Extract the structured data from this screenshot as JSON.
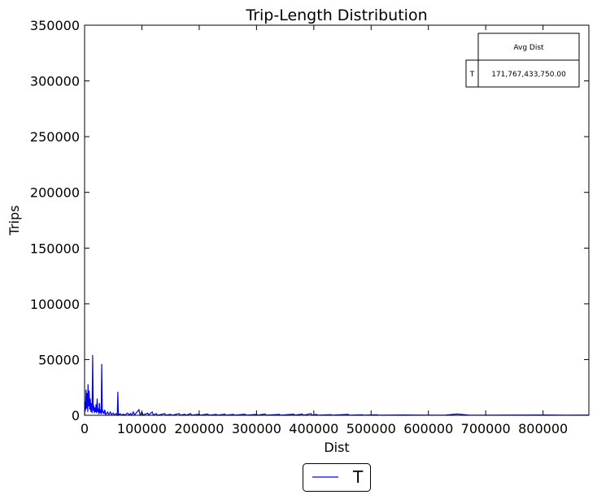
{
  "chart_data": {
    "type": "line",
    "title": "Trip-Length Distribution",
    "xlabel": "Dist",
    "ylabel": "Trips",
    "xlim": [
      0,
      880000
    ],
    "ylim": [
      0,
      350000
    ],
    "xticks": [
      0,
      100000,
      200000,
      300000,
      400000,
      500000,
      600000,
      700000,
      800000
    ],
    "yticks": [
      0,
      50000,
      100000,
      150000,
      200000,
      250000,
      300000,
      350000
    ],
    "grid": false,
    "legend_position": "bottom-center",
    "series": [
      {
        "name": "T",
        "color": "#0000ff",
        "points": [
          [
            0,
            0
          ],
          [
            1000,
            12000
          ],
          [
            1500,
            4000
          ],
          [
            2500,
            23000
          ],
          [
            3500,
            6000
          ],
          [
            4500,
            20000
          ],
          [
            5500,
            3000
          ],
          [
            6000,
            28000
          ],
          [
            7000,
            8000
          ],
          [
            8000,
            22000
          ],
          [
            9000,
            5000
          ],
          [
            10000,
            15000
          ],
          [
            11000,
            3000
          ],
          [
            12000,
            11000
          ],
          [
            13000,
            2000
          ],
          [
            14000,
            54000
          ],
          [
            15000,
            4000
          ],
          [
            16000,
            9000
          ],
          [
            17000,
            2000
          ],
          [
            18000,
            7000
          ],
          [
            19000,
            3000
          ],
          [
            20000,
            10000
          ],
          [
            21000,
            2000
          ],
          [
            22000,
            15000
          ],
          [
            23000,
            3000
          ],
          [
            24000,
            6000
          ],
          [
            25000,
            1000
          ],
          [
            26000,
            11000
          ],
          [
            27000,
            2000
          ],
          [
            28000,
            5000
          ],
          [
            29000,
            1000
          ],
          [
            30000,
            46000
          ],
          [
            31000,
            2000
          ],
          [
            32000,
            4000
          ],
          [
            34000,
            1000
          ],
          [
            35000,
            5000
          ],
          [
            37000,
            500
          ],
          [
            40000,
            3000
          ],
          [
            42000,
            500
          ],
          [
            45000,
            3000
          ],
          [
            47000,
            500
          ],
          [
            50000,
            2000
          ],
          [
            52000,
            300
          ],
          [
            55000,
            1500
          ],
          [
            57000,
            300
          ],
          [
            58000,
            21000
          ],
          [
            59000,
            300
          ],
          [
            62000,
            1500
          ],
          [
            65000,
            200
          ],
          [
            68000,
            1000
          ],
          [
            70000,
            200
          ],
          [
            75000,
            2000
          ],
          [
            78000,
            200
          ],
          [
            80000,
            1500
          ],
          [
            82000,
            200
          ],
          [
            85000,
            3000
          ],
          [
            87000,
            200
          ],
          [
            95000,
            5000
          ],
          [
            97000,
            200
          ],
          [
            100000,
            3000
          ],
          [
            102000,
            200
          ],
          [
            110000,
            2000
          ],
          [
            112000,
            200
          ],
          [
            118000,
            3000
          ],
          [
            120000,
            200
          ],
          [
            125000,
            1500
          ],
          [
            127000,
            100
          ],
          [
            140000,
            1500
          ],
          [
            142000,
            100
          ],
          [
            150000,
            1000
          ],
          [
            152000,
            100
          ],
          [
            165000,
            1500
          ],
          [
            167000,
            100
          ],
          [
            175000,
            1000
          ],
          [
            177000,
            100
          ],
          [
            185000,
            1500
          ],
          [
            187000,
            100
          ],
          [
            200000,
            1000
          ],
          [
            202000,
            100
          ],
          [
            215000,
            1200
          ],
          [
            217000,
            100
          ],
          [
            230000,
            800
          ],
          [
            232000,
            100
          ],
          [
            245000,
            1000
          ],
          [
            247000,
            100
          ],
          [
            260000,
            800
          ],
          [
            262000,
            100
          ],
          [
            280000,
            1000
          ],
          [
            282000,
            100
          ],
          [
            300000,
            800
          ],
          [
            302000,
            100
          ],
          [
            315000,
            1200
          ],
          [
            317000,
            100
          ],
          [
            340000,
            800
          ],
          [
            342000,
            100
          ],
          [
            365000,
            1000
          ],
          [
            367000,
            100
          ],
          [
            380000,
            1200
          ],
          [
            382000,
            100
          ],
          [
            395000,
            1500
          ],
          [
            397000,
            100
          ],
          [
            405000,
            800
          ],
          [
            407000,
            100
          ],
          [
            430000,
            600
          ],
          [
            432000,
            100
          ],
          [
            460000,
            800
          ],
          [
            462000,
            100
          ],
          [
            485000,
            500
          ],
          [
            487000,
            100
          ],
          [
            510000,
            500
          ],
          [
            512000,
            100
          ],
          [
            560000,
            300
          ],
          [
            600000,
            100
          ],
          [
            630000,
            200
          ],
          [
            650000,
            1200
          ],
          [
            670000,
            200
          ],
          [
            700000,
            100
          ],
          [
            760000,
            200
          ],
          [
            800000,
            300
          ],
          [
            840000,
            100
          ],
          [
            880000,
            200
          ]
        ]
      }
    ],
    "table": {
      "col_header": "Avg Dist",
      "row_header": "T",
      "value": "171,767,433,750.00"
    }
  }
}
